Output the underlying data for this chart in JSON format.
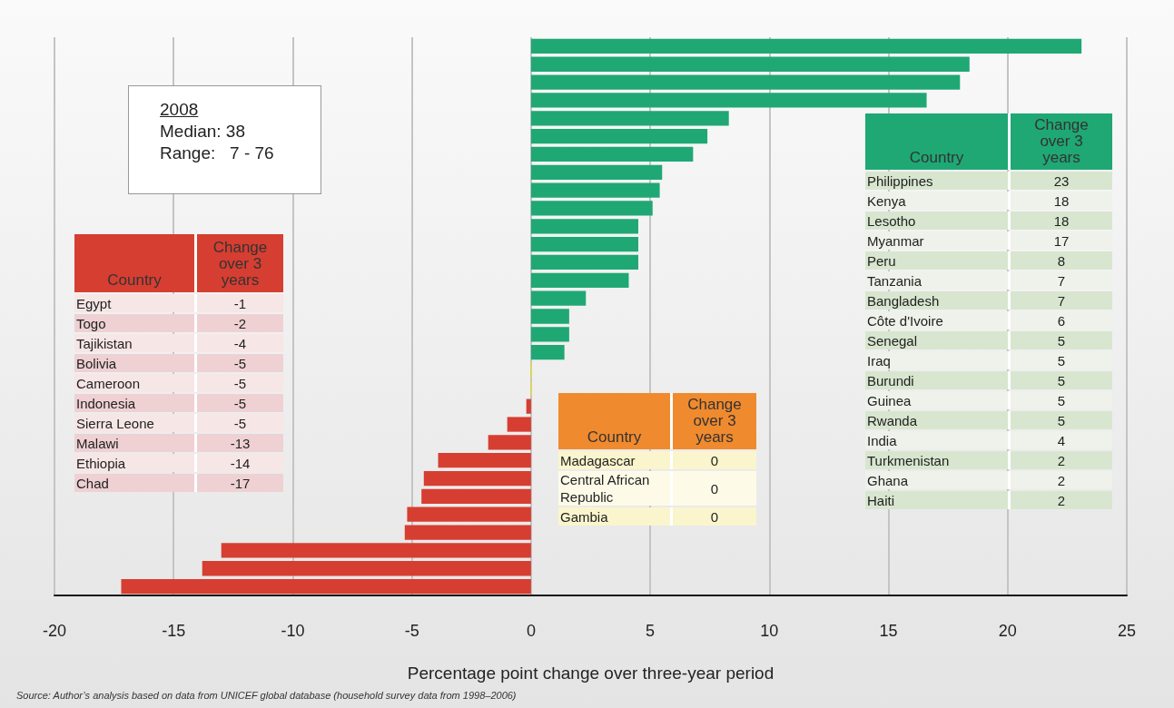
{
  "chart_data": {
    "type": "bar",
    "orientation": "horizontal",
    "xlabel": "Percentage point change over three-year period",
    "categories": [
      null,
      null,
      null,
      null,
      null,
      null,
      null,
      null,
      null,
      null,
      null,
      null,
      null,
      null,
      null,
      null,
      null,
      null,
      null,
      null,
      null,
      null,
      null,
      null,
      null,
      null,
      null,
      null,
      null,
      null,
      null
    ],
    "values": [
      23.1,
      18.4,
      18.0,
      16.6,
      8.3,
      7.4,
      6.8,
      5.5,
      5.4,
      5.1,
      4.5,
      4.5,
      4.5,
      4.1,
      2.3,
      1.6,
      1.6,
      1.4,
      0,
      0,
      -0.2,
      -1.0,
      -1.8,
      -3.9,
      -4.5,
      -4.6,
      -5.2,
      -5.3,
      -13.0,
      -13.8,
      -17.2
    ],
    "colors": [
      "#1fa874",
      "#1fa874",
      "#1fa874",
      "#1fa874",
      "#1fa874",
      "#1fa874",
      "#1fa874",
      "#1fa874",
      "#1fa874",
      "#1fa874",
      "#1fa874",
      "#1fa874",
      "#1fa874",
      "#1fa874",
      "#1fa874",
      "#1fa874",
      "#1fa874",
      "#1fa874",
      "#f2e600",
      "#f2e600",
      "#d63e31",
      "#d63e31",
      "#d63e31",
      "#d63e31",
      "#d63e31",
      "#d63e31",
      "#d63e31",
      "#d63e31",
      "#d63e31",
      "#d63e31",
      "#d63e31"
    ],
    "xlim": [
      -20,
      25
    ],
    "xticks": [
      -20,
      -15,
      -10,
      -5,
      0,
      5,
      10,
      15,
      20,
      25
    ],
    "grid": "x",
    "annotations": [
      "2008",
      "Median: 38",
      "Range:   7 - 76",
      "Country",
      "Change over 3 years",
      "Egypt",
      "-1",
      "Togo",
      "-2",
      "Tajikistan",
      "-4",
      "Bolivia",
      "-5",
      "Cameroon",
      "-5",
      "Indonesia",
      "-5",
      "Sierra Leone",
      "-5",
      "Malawi",
      "-13",
      "Ethiopia",
      "-14",
      "Chad",
      "-17",
      "Country",
      "Change over 3 years",
      "Madagascar",
      "0",
      "Central African Republic",
      "0",
      "Gambia",
      "0",
      "Country",
      "Change over 3 years",
      "Philippines",
      "23",
      "Kenya",
      "18",
      "Lesotho",
      "18",
      "Myanmar",
      "17",
      "Peru",
      "8",
      "Tanzania",
      "7",
      "Bangladesh",
      "7",
      "Côte d'Ivoire",
      "6",
      "Senegal",
      "5",
      "Iraq",
      "5",
      "Burundi",
      "5",
      "Guinea",
      "5",
      "Rwanda",
      "5",
      "India",
      "4",
      "Turkmenistan",
      "2",
      "Ghana",
      "2",
      "Haiti",
      "2",
      "Source: Author’s analysis based on data from UNICEF global database (household survey data from 1998–2006)"
    ]
  }
}
